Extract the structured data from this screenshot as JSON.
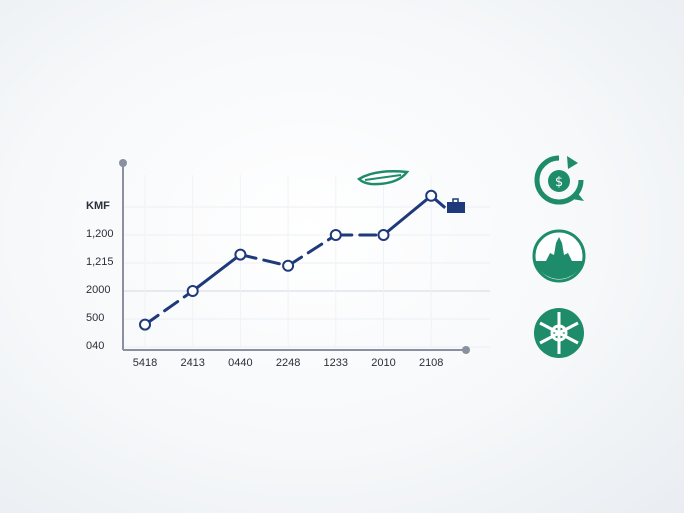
{
  "chart_data": {
    "type": "line",
    "y_tick_labels": [
      "040",
      "500",
      "2000",
      "1,215",
      "1,200",
      "KMF"
    ],
    "x": [
      "5418",
      "2413",
      "0440",
      "2248",
      "1233",
      "2010",
      "2108"
    ],
    "series": [
      {
        "values": [
          0.8,
          2.0,
          3.3,
          2.9,
          4.0,
          4.0,
          5.4
        ]
      }
    ],
    "ylim": [
      0,
      6
    ],
    "grid": true,
    "line_color": "#1f3a7a",
    "accent_color": "#1e8c6a"
  },
  "icons": [
    "leaf-icon",
    "briefcase-icon",
    "recycle-money-icon",
    "plant-icon",
    "network-emblem-icon"
  ]
}
